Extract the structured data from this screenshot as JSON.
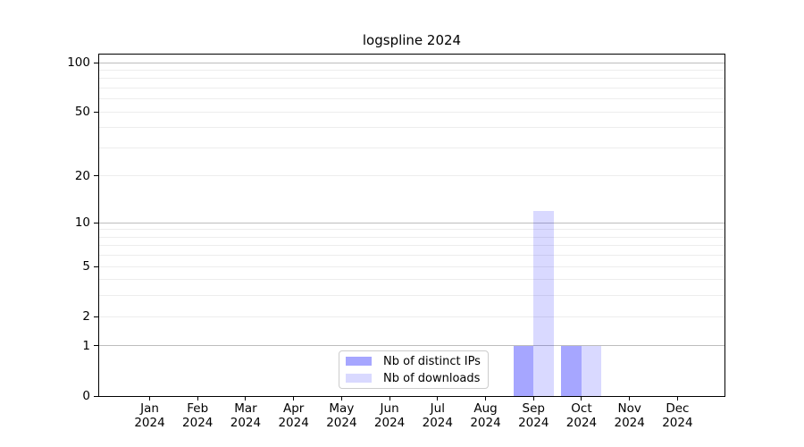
{
  "figure": {
    "title": "logspline 2024",
    "background": "#ffffff"
  },
  "chart_data": {
    "type": "bar",
    "title": "logspline 2024",
    "x": {
      "months": [
        "Jan",
        "Feb",
        "Mar",
        "Apr",
        "May",
        "Jun",
        "Jul",
        "Aug",
        "Sep",
        "Oct",
        "Nov",
        "Dec"
      ],
      "year": "2024"
    },
    "categories": [
      "Jan 2024",
      "Feb 2024",
      "Mar 2024",
      "Apr 2024",
      "May 2024",
      "Jun 2024",
      "Jul 2024",
      "Aug 2024",
      "Sep 2024",
      "Oct 2024",
      "Nov 2024",
      "Dec 2024"
    ],
    "series": [
      {
        "name": "Nb of distinct IPs",
        "color": "#a6a6ff",
        "fill": "#0000ff59",
        "values": [
          0,
          0,
          0,
          0,
          0,
          0,
          0,
          0,
          1,
          1,
          0,
          0
        ]
      },
      {
        "name": "Nb of downloads",
        "color": "#d9d9ff",
        "fill": "#0000ff26",
        "values": [
          0,
          0,
          0,
          0,
          0,
          0,
          0,
          0,
          12,
          1,
          0,
          0
        ]
      }
    ],
    "yscale": "log1p",
    "ylim": [
      0,
      113
    ],
    "ylabel": "",
    "xlabel": "",
    "yticks": [
      0,
      1,
      2,
      5,
      10,
      20,
      50,
      100
    ],
    "ygrid_major": [
      1,
      10,
      100
    ],
    "ygrid_minor": [
      2,
      3,
      4,
      5,
      6,
      7,
      8,
      9,
      20,
      30,
      40,
      50,
      60,
      70,
      80,
      90
    ],
    "grid": "horizontal",
    "legend_position": "bottom-center-inside",
    "colors": {
      "grid_major": "#bdbdbd",
      "grid_minor": "#ededed",
      "spine": "#000000",
      "text": "#000000",
      "legend_border": "#cccccc"
    }
  }
}
